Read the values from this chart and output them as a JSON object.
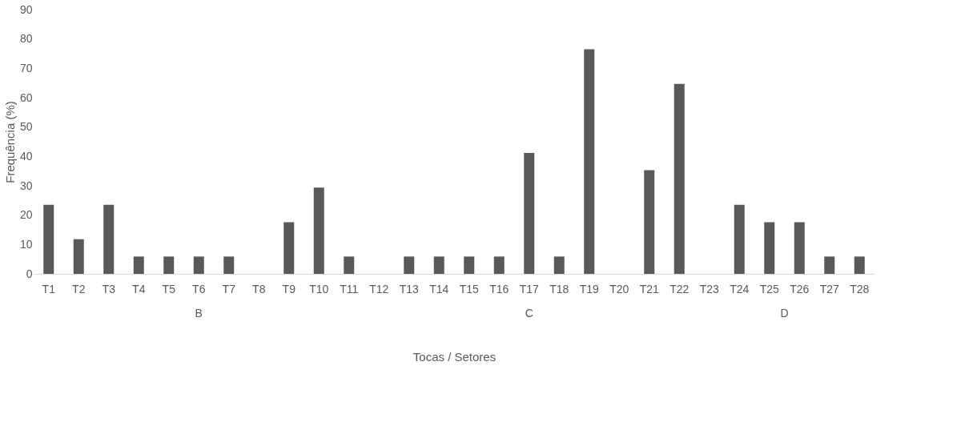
{
  "chart_data": {
    "type": "bar",
    "xlabel": "Tocas / Setores",
    "ylabel": "Frequência (%)",
    "categories": [
      "T1",
      "T2",
      "T3",
      "T4",
      "T5",
      "T6",
      "T7",
      "T8",
      "T9",
      "T10",
      "T11",
      "T12",
      "T13",
      "T14",
      "T15",
      "T16",
      "T17",
      "T18",
      "T19",
      "T20",
      "T21",
      "T22",
      "T23",
      "T24",
      "T25",
      "T26",
      "T27",
      "T28"
    ],
    "values": [
      23.5,
      11.8,
      23.5,
      5.9,
      5.9,
      5.9,
      5.9,
      0,
      17.6,
      29.4,
      5.9,
      0,
      5.9,
      5.9,
      5.9,
      5.9,
      41.2,
      5.9,
      76.5,
      0,
      35.3,
      64.7,
      0,
      23.5,
      17.6,
      17.6,
      5.9,
      5.9
    ],
    "color": "#595959",
    "ylim": [
      0,
      90
    ],
    "yticks": [
      0,
      10,
      20,
      30,
      40,
      50,
      60,
      70,
      80,
      90
    ],
    "grid": false,
    "annotations": [
      "B",
      "C",
      "D"
    ]
  }
}
